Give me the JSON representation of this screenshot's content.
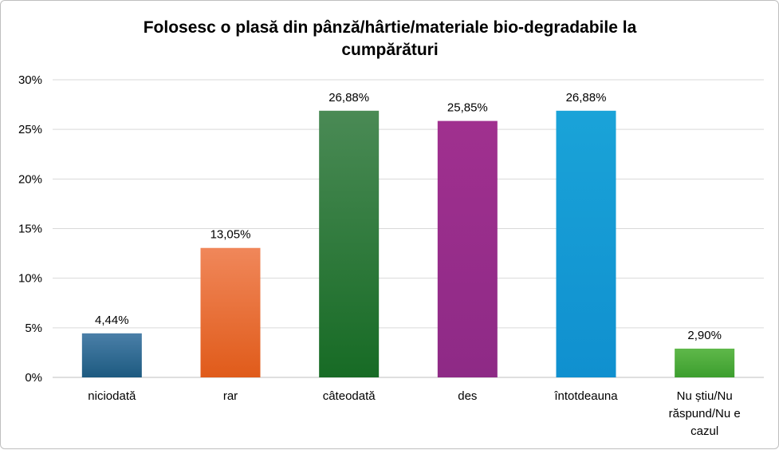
{
  "chart_data": {
    "type": "bar",
    "title_lines": [
      "Folosesc o plasă din pânză/hârtie/materiale bio-degradabile la",
      "cumpărături"
    ],
    "categories": [
      [
        "niciodată"
      ],
      [
        "rar"
      ],
      [
        "câteodată"
      ],
      [
        "des"
      ],
      [
        "întotdeauna"
      ],
      [
        "Nu știu/Nu",
        "răspund/Nu e",
        "cazul"
      ]
    ],
    "values": [
      4.44,
      13.05,
      26.88,
      25.85,
      26.88,
      2.9
    ],
    "data_labels": [
      "4,44%",
      "13,05%",
      "26,88%",
      "25,85%",
      "26,88%",
      "2,90%"
    ],
    "y_ticks": [
      "0%",
      "5%",
      "10%",
      "15%",
      "20%",
      "25%",
      "30%"
    ],
    "ylim": [
      0,
      30
    ],
    "grid": true,
    "legend": "none",
    "colors": [
      [
        "#4a7fa8",
        "#1d5a80"
      ],
      [
        "#f0875a",
        "#e05b1a"
      ],
      [
        "#4a8a55",
        "#176b25"
      ],
      [
        "#a0308f",
        "#8e2a86"
      ],
      [
        "#1aa3d8",
        "#1090cf"
      ],
      [
        "#5fb84a",
        "#3c9e2e"
      ]
    ]
  }
}
